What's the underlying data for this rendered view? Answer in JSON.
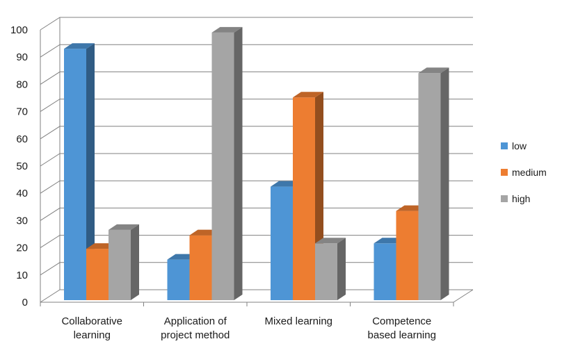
{
  "chart_data": {
    "type": "bar",
    "categories": [
      [
        "Collaborative",
        "learning"
      ],
      [
        "Application of",
        "project method"
      ],
      [
        "Mixed learning"
      ],
      [
        "Competence",
        "based learning"
      ]
    ],
    "series": [
      {
        "name": "low",
        "color": "#4e95d5",
        "values": [
          93,
          15,
          42,
          21
        ]
      },
      {
        "name": "medium",
        "color": "#ed7d31",
        "values": [
          19,
          24,
          75,
          33
        ]
      },
      {
        "name": "high",
        "color": "#a5a5a5",
        "values": [
          26,
          99,
          21,
          84
        ]
      }
    ],
    "title": "",
    "xlabel": "",
    "ylabel": "",
    "ylim": [
      0,
      100
    ],
    "yticks": [
      0,
      10,
      20,
      30,
      40,
      50,
      60,
      70,
      80,
      90,
      100
    ],
    "grid": true,
    "legend": "right",
    "style": "3d-clustered-column"
  }
}
